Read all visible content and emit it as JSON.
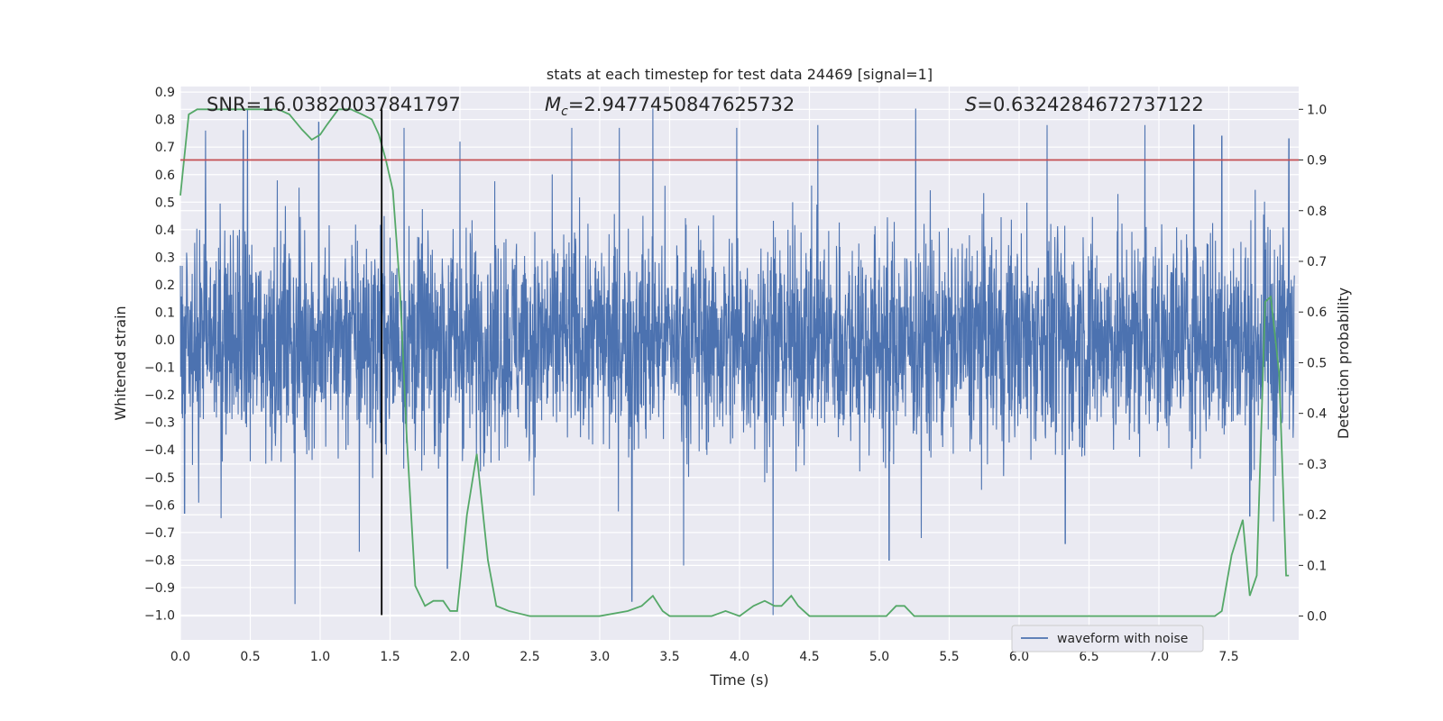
{
  "chart_data": {
    "type": "line",
    "title": "stats at each timestep for test data 24469 [signal=1]",
    "xlabel": "Time (s)",
    "ylabel": "Whitened strain",
    "ylabel_right": "Detection probability",
    "xlim": [
      0.0,
      8.0
    ],
    "ylim": [
      -1.09,
      0.92
    ],
    "ylim_right": [
      -0.047,
      1.045
    ],
    "x_ticks": [
      "0.0",
      "0.5",
      "1.0",
      "1.5",
      "2.0",
      "2.5",
      "3.0",
      "3.5",
      "4.0",
      "4.5",
      "5.0",
      "5.5",
      "6.0",
      "6.5",
      "7.0",
      "7.5"
    ],
    "y_ticks": [
      "0.9",
      "0.8",
      "0.7",
      "0.6",
      "0.5",
      "0.4",
      "0.3",
      "0.2",
      "0.1",
      "0.0",
      "−0.1",
      "−0.2",
      "−0.3",
      "−0.4",
      "−0.5",
      "−0.6",
      "−0.7",
      "−0.8",
      "−0.9",
      "−1.0"
    ],
    "y_ticks_right": [
      "1.0",
      "0.9",
      "0.8",
      "0.7",
      "0.6",
      "0.5",
      "0.4",
      "0.3",
      "0.2",
      "0.1",
      "0.0"
    ],
    "annotations": {
      "snr": "SNR=16.03820037841797",
      "mc_symbol": "M",
      "mc_sub": "c",
      "mc_value": "=2.9477450847625732",
      "s_symbol": "S",
      "s_value": "=0.6324284672737122"
    },
    "threshold_right": 0.9,
    "marker_x": 1.44,
    "grid": true,
    "legend": {
      "position": "bottom-right",
      "label": "waveform with noise"
    },
    "series": [
      {
        "name": "waveform with noise",
        "color": "#4c72b0",
        "axis": "left",
        "style": "noise",
        "peaks": [
          [
            0.03,
            -0.63
          ],
          [
            0.18,
            0.76
          ],
          [
            0.45,
            0.76
          ],
          [
            0.48,
            0.84
          ],
          [
            0.82,
            -0.96
          ],
          [
            0.99,
            0.79
          ],
          [
            1.28,
            -0.77
          ],
          [
            1.6,
            0.77
          ],
          [
            1.91,
            -0.83
          ],
          [
            2.0,
            0.72
          ],
          [
            2.8,
            0.77
          ],
          [
            3.14,
            0.77
          ],
          [
            3.23,
            -0.95
          ],
          [
            3.38,
            0.84
          ],
          [
            3.6,
            -0.82
          ],
          [
            3.98,
            0.77
          ],
          [
            4.24,
            -1.0
          ],
          [
            4.56,
            0.78
          ],
          [
            5.07,
            -0.8
          ],
          [
            5.26,
            0.84
          ],
          [
            5.3,
            -0.72
          ],
          [
            6.2,
            0.78
          ],
          [
            6.33,
            -0.74
          ],
          [
            6.9,
            0.78
          ],
          [
            7.25,
            0.78
          ],
          [
            7.45,
            0.74
          ],
          [
            7.65,
            -0.64
          ],
          [
            7.82,
            -0.66
          ],
          [
            7.93,
            0.73
          ]
        ]
      },
      {
        "name": "",
        "color": "#55a868",
        "axis": "right",
        "x": [
          0.0,
          0.06,
          0.12,
          0.3,
          0.5,
          0.7,
          0.78,
          0.87,
          0.94,
          1.0,
          1.05,
          1.13,
          1.22,
          1.3,
          1.37,
          1.42,
          1.47,
          1.52,
          1.57,
          1.62,
          1.68,
          1.75,
          1.81,
          1.88,
          1.93,
          1.98,
          2.05,
          2.12,
          2.2,
          2.26,
          2.35,
          2.5,
          2.65,
          2.8,
          3.0,
          3.2,
          3.3,
          3.38,
          3.45,
          3.5,
          3.6,
          3.8,
          3.9,
          4.0,
          4.1,
          4.18,
          4.25,
          4.3,
          4.37,
          4.42,
          4.5,
          4.8,
          5.05,
          5.12,
          5.18,
          5.25,
          5.5,
          6.0,
          6.5,
          7.0,
          7.4,
          7.45,
          7.52,
          7.6,
          7.65,
          7.7,
          7.76,
          7.8,
          7.86,
          7.91,
          7.93
        ],
        "values": [
          0.83,
          0.99,
          1.0,
          1.0,
          1.0,
          1.0,
          0.99,
          0.96,
          0.94,
          0.95,
          0.97,
          1.0,
          1.0,
          0.99,
          0.98,
          0.95,
          0.9,
          0.84,
          0.65,
          0.35,
          0.06,
          0.02,
          0.03,
          0.03,
          0.01,
          0.01,
          0.2,
          0.32,
          0.11,
          0.02,
          0.01,
          0.0,
          0.0,
          0.0,
          0.0,
          0.01,
          0.02,
          0.04,
          0.01,
          0.0,
          0.0,
          0.0,
          0.01,
          0.0,
          0.02,
          0.03,
          0.02,
          0.02,
          0.04,
          0.02,
          0.0,
          0.0,
          0.0,
          0.02,
          0.02,
          0.0,
          0.0,
          0.0,
          0.0,
          0.0,
          0.0,
          0.01,
          0.12,
          0.19,
          0.04,
          0.08,
          0.62,
          0.63,
          0.48,
          0.08,
          0.08
        ]
      },
      {
        "name": "",
        "color": "#c44e52",
        "axis": "right",
        "x": [
          0.0,
          8.0
        ],
        "values": [
          0.9,
          0.9
        ]
      }
    ]
  }
}
